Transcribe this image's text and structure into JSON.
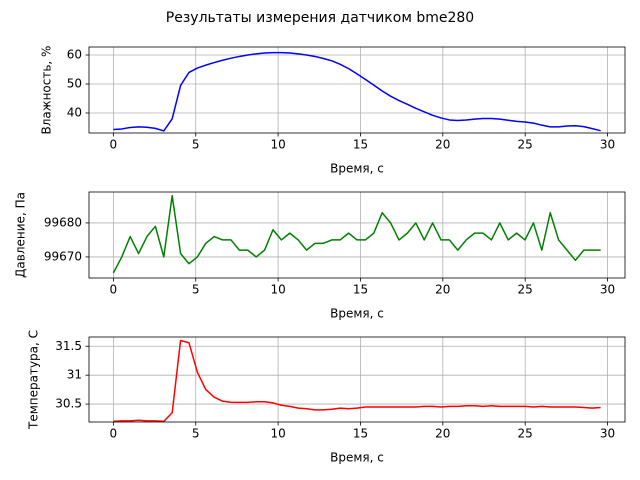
{
  "title": "Результаты измерения датчиком bme280",
  "chart_data": [
    {
      "type": "line",
      "xlabel": "Время, с",
      "ylabel": "Влажность, %",
      "color": "#0000ff",
      "grid": true,
      "x": [
        0,
        0.51,
        1.02,
        1.53,
        2.04,
        2.55,
        3.06,
        3.57,
        4.08,
        4.59,
        5.1,
        5.61,
        6.12,
        6.63,
        7.14,
        7.65,
        8.16,
        8.67,
        9.18,
        9.69,
        10.2,
        10.71,
        11.22,
        11.73,
        12.24,
        12.75,
        13.26,
        13.77,
        14.28,
        14.79,
        15.3,
        15.81,
        16.32,
        16.83,
        17.34,
        17.85,
        18.36,
        18.87,
        19.38,
        19.89,
        20.4,
        20.91,
        21.42,
        21.93,
        22.44,
        22.95,
        23.46,
        23.97,
        24.48,
        24.99,
        25.5,
        26.01,
        26.52,
        27.03,
        27.54,
        28.05,
        28.56,
        29.07,
        29.58
      ],
      "values": [
        34.3,
        34.5,
        35,
        35.2,
        35.1,
        34.7,
        33.8,
        38,
        49.5,
        54,
        55.5,
        56.5,
        57.4,
        58.2,
        58.9,
        59.5,
        60,
        60.4,
        60.7,
        60.8,
        60.8,
        60.7,
        60.4,
        60,
        59.5,
        58.8,
        58,
        56.8,
        55.3,
        53.5,
        51.6,
        49.6,
        47.6,
        45.8,
        44.3,
        43,
        41.6,
        40.4,
        39.2,
        38.3,
        37.6,
        37.4,
        37.6,
        37.9,
        38.1,
        38.1,
        37.9,
        37.5,
        37.1,
        36.9,
        36.5,
        35.8,
        35.2,
        35.2,
        35.5,
        35.6,
        35.3,
        34.6,
        33.9
      ],
      "xlim": [
        -1.48,
        31.06
      ],
      "ylim": [
        33.1,
        62.76
      ],
      "xticks": [
        0,
        5,
        10,
        15,
        20,
        25,
        30
      ],
      "yticks": [
        40,
        50,
        60
      ]
    },
    {
      "type": "line",
      "xlabel": "Время, с",
      "ylabel": "Давление, Па",
      "color": "#008000",
      "grid": true,
      "x": [
        0,
        0.51,
        1.02,
        1.53,
        2.04,
        2.55,
        3.06,
        3.57,
        4.08,
        4.59,
        5.1,
        5.61,
        6.12,
        6.63,
        7.14,
        7.65,
        8.16,
        8.67,
        9.18,
        9.69,
        10.2,
        10.71,
        11.22,
        11.73,
        12.24,
        12.75,
        13.26,
        13.77,
        14.28,
        14.79,
        15.3,
        15.81,
        16.32,
        16.83,
        17.34,
        17.85,
        18.36,
        18.87,
        19.38,
        19.89,
        20.4,
        20.91,
        21.42,
        21.93,
        22.44,
        22.95,
        23.46,
        23.97,
        24.48,
        24.99,
        25.5,
        26.01,
        26.52,
        27.03,
        27.54,
        28.05,
        28.56,
        29.07,
        29.58
      ],
      "values": [
        99665.3,
        99670,
        99676,
        99671,
        99676,
        99679,
        99670,
        99688,
        99671,
        99668,
        99670,
        99674,
        99676,
        99675,
        99675,
        99672,
        99672,
        99670,
        99672,
        99678,
        99675,
        99677,
        99675,
        99672,
        99674,
        99674,
        99675,
        99675,
        99677,
        99675,
        99675,
        99677,
        99683,
        99680,
        99675,
        99677,
        99680,
        99675,
        99680,
        99675,
        99675,
        99672,
        99675,
        99677,
        99677,
        99675,
        99680,
        99675,
        99677,
        99675,
        99680,
        99672,
        99683,
        99675,
        99672,
        99669,
        99672,
        99672,
        99672
      ],
      "xlim": [
        -1.48,
        31.06
      ],
      "ylim": [
        99663.8,
        99689.1
      ],
      "xticks": [
        0,
        5,
        10,
        15,
        20,
        25,
        30
      ],
      "yticks": [
        99670,
        99680
      ]
    },
    {
      "type": "line",
      "xlabel": "Время, с",
      "ylabel": "Температура, С",
      "color": "#ff0000",
      "grid": true,
      "x": [
        0,
        0.51,
        1.02,
        1.53,
        2.04,
        2.55,
        3.06,
        3.57,
        4.08,
        4.59,
        5.1,
        5.61,
        6.12,
        6.63,
        7.14,
        7.65,
        8.16,
        8.67,
        9.18,
        9.69,
        10.2,
        10.71,
        11.22,
        11.73,
        12.24,
        12.75,
        13.26,
        13.77,
        14.28,
        14.79,
        15.3,
        15.81,
        16.32,
        16.83,
        17.34,
        17.85,
        18.36,
        18.87,
        19.38,
        19.89,
        20.4,
        20.91,
        21.42,
        21.93,
        22.44,
        22.95,
        23.46,
        23.97,
        24.48,
        24.99,
        25.5,
        26.01,
        26.52,
        27.03,
        27.54,
        28.05,
        28.56,
        29.07,
        29.58
      ],
      "values": [
        30.2,
        30.21,
        30.21,
        30.22,
        30.21,
        30.21,
        30.2,
        30.35,
        31.6,
        31.56,
        31.05,
        30.75,
        30.62,
        30.55,
        30.53,
        30.53,
        30.53,
        30.54,
        30.54,
        30.52,
        30.48,
        30.46,
        30.43,
        30.42,
        30.4,
        30.4,
        30.41,
        30.43,
        30.42,
        30.43,
        30.45,
        30.45,
        30.45,
        30.45,
        30.45,
        30.45,
        30.45,
        30.46,
        30.46,
        30.45,
        30.46,
        30.46,
        30.47,
        30.47,
        30.46,
        30.47,
        30.46,
        30.46,
        30.46,
        30.46,
        30.45,
        30.46,
        30.45,
        30.45,
        30.45,
        30.45,
        30.44,
        30.43,
        30.44
      ],
      "xlim": [
        -1.48,
        31.06
      ],
      "ylim": [
        30.19,
        31.66
      ],
      "xticks": [
        0,
        5,
        10,
        15,
        20,
        25,
        30
      ],
      "yticks": [
        30.5,
        31.0,
        31.5
      ]
    }
  ]
}
